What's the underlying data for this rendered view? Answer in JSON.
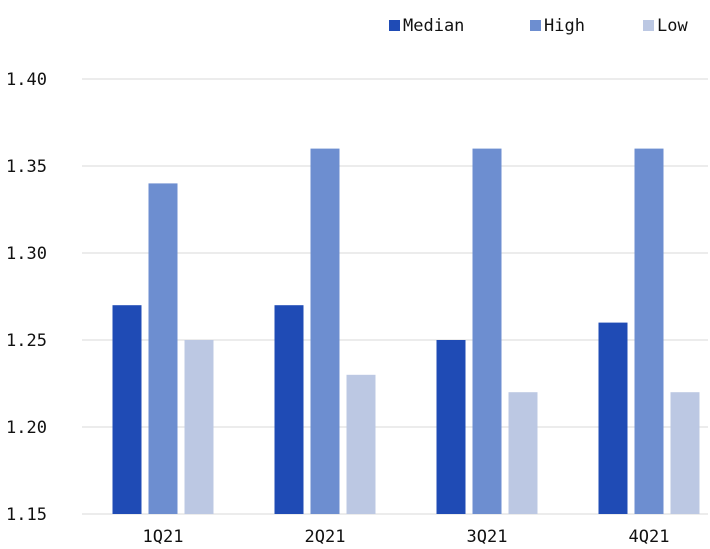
{
  "chart_data": {
    "type": "bar",
    "categories": [
      "1Q21",
      "2Q21",
      "3Q21",
      "4Q21"
    ],
    "series": [
      {
        "name": "Median",
        "values": [
          1.27,
          1.27,
          1.25,
          1.26
        ],
        "color": "#1f4bb5"
      },
      {
        "name": "High",
        "values": [
          1.34,
          1.36,
          1.36,
          1.36
        ],
        "color": "#6d8ed0"
      },
      {
        "name": "Low",
        "values": [
          1.25,
          1.23,
          1.22,
          1.22
        ],
        "color": "#bcc8e3"
      }
    ],
    "ylim": [
      1.15,
      1.4
    ],
    "yticks": [
      "1.15",
      "1.20",
      "1.25",
      "1.30",
      "1.35",
      "1.40"
    ],
    "grid": true,
    "legend_position": "top-right"
  }
}
